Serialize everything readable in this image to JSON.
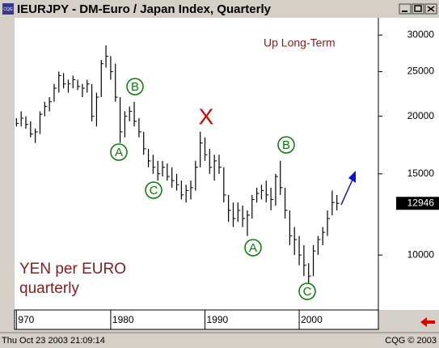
{
  "window": {
    "icon": "CQG",
    "title": "IEURJPY - DM-Euro / Japan Index, Quarterly"
  },
  "status": {
    "datetime": "Thu Oct 23 2003 21:09:14",
    "copyright": "CQG © 2003"
  },
  "chart_data": {
    "type": "ohlc",
    "x": [
      1970.0,
      1970.5,
      1971.0,
      1971.5,
      1972.0,
      1972.5,
      1973.0,
      1973.5,
      1974.0,
      1974.5,
      1975.0,
      1975.5,
      1976.0,
      1976.5,
      1977.0,
      1977.5,
      1978.0,
      1978.5,
      1979.0,
      1979.5,
      1980.0,
      1980.5,
      1981.0,
      1981.5,
      1982.0,
      1982.5,
      1983.0,
      1983.5,
      1984.0,
      1984.5,
      1985.0,
      1985.5,
      1986.0,
      1986.5,
      1987.0,
      1987.5,
      1988.0,
      1988.5,
      1989.0,
      1989.5,
      1990.0,
      1990.5,
      1991.0,
      1991.5,
      1992.0,
      1992.5,
      1993.0,
      1993.5,
      1994.0,
      1994.5,
      1995.0,
      1995.5,
      1996.0,
      1996.5,
      1997.0,
      1997.5,
      1998.0,
      1998.5,
      1999.0,
      1999.5,
      2000.0,
      2000.5,
      2001.0,
      2001.5,
      2002.0,
      2002.5,
      2003.0,
      2003.5,
      2004.0
    ],
    "high": [
      19800,
      20500,
      20000,
      19500,
      18800,
      20500,
      21500,
      22000,
      23500,
      25000,
      24800,
      24000,
      24500,
      24000,
      23500,
      24000,
      23500,
      22500,
      26500,
      28500,
      27000,
      26000,
      22000,
      20500,
      21000,
      21500,
      19800,
      18500,
      17000,
      16500,
      16000,
      16000,
      15800,
      15500,
      15000,
      14500,
      14200,
      14500,
      16000,
      18500,
      18000,
      17000,
      16500,
      16500,
      15500,
      13500,
      13000,
      13000,
      12800,
      12500,
      13500,
      14000,
      14200,
      14500,
      14000,
      15000,
      16000,
      14000,
      12500,
      11500,
      11000,
      10500,
      9600,
      10500,
      11000,
      11500,
      12500,
      13800,
      13500
    ],
    "low": [
      19000,
      19000,
      18800,
      18000,
      17500,
      18300,
      20000,
      20500,
      21500,
      22500,
      23000,
      22500,
      23000,
      22800,
      22000,
      22500,
      19500,
      19000,
      22000,
      25500,
      24000,
      21500,
      17500,
      18000,
      19500,
      19000,
      18000,
      16500,
      15500,
      15000,
      14500,
      14800,
      14500,
      14000,
      13800,
      13200,
      13000,
      13200,
      13800,
      15500,
      16000,
      15000,
      14500,
      15000,
      13000,
      11800,
      11500,
      11800,
      11500,
      11000,
      12000,
      13000,
      13200,
      13000,
      12500,
      12800,
      13500,
      12000,
      10500,
      10000,
      9500,
      9000,
      8500,
      9000,
      10000,
      10500,
      11000,
      12200,
      12500
    ],
    "close": [
      19300,
      19800,
      19200,
      18300,
      18500,
      20200,
      21000,
      21500,
      23000,
      24500,
      23500,
      23500,
      24000,
      23200,
      23000,
      23500,
      20000,
      22000,
      26000,
      27000,
      25000,
      22000,
      18500,
      20000,
      20500,
      19500,
      18500,
      17000,
      16000,
      15500,
      15000,
      15500,
      14800,
      14500,
      14200,
      13500,
      13800,
      14000,
      15500,
      17500,
      16500,
      15500,
      16000,
      15500,
      13500,
      12500,
      12000,
      12500,
      12000,
      12200,
      13200,
      13600,
      13800,
      13500,
      13200,
      14800,
      14000,
      12500,
      11000,
      10800,
      10000,
      9500,
      9000,
      10200,
      10800,
      11200,
      12000,
      13000,
      12946
    ],
    "color": "#000000",
    "xlim": [
      1969.8,
      2008.4
    ],
    "xticks": [
      {
        "value": 1970,
        "label": "970"
      },
      1980,
      1990,
      2000
    ],
    "ylim": [
      7600,
      32700
    ],
    "yticks": [
      10000,
      15000,
      20000,
      25000,
      30000
    ],
    "log_scale": true,
    "annotations": {
      "trend": "Up Long-Term",
      "units": "YEN per EURO",
      "period": "quarterly"
    },
    "wave_labels": [
      "A",
      "B",
      "C",
      "X",
      "B",
      "A",
      "C"
    ]
  }
}
